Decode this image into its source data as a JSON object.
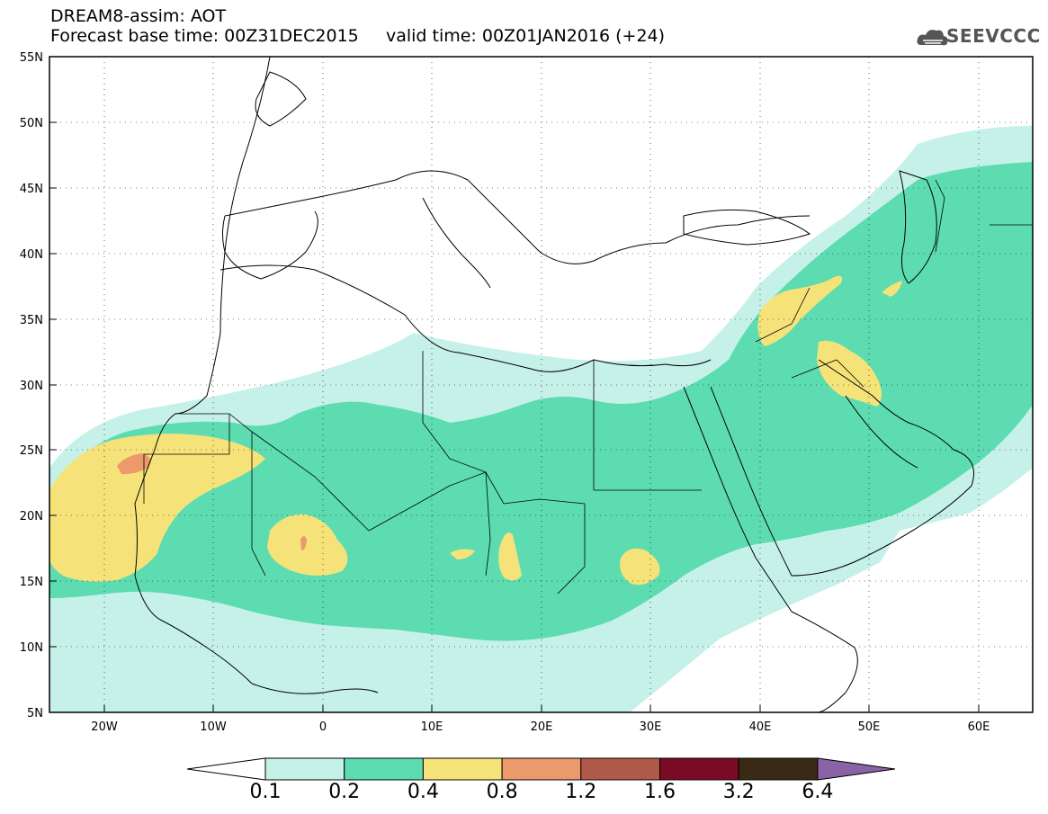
{
  "header": {
    "title": "DREAM8-assim: AOT",
    "subtitle": "Forecast base time: 00Z31DEC2015     valid time: 00Z01JAN2016 (+24)",
    "logo_text": "SEEVCCC"
  },
  "map": {
    "lon_range": [
      -25,
      65
    ],
    "lat_range": [
      5,
      55
    ],
    "lat_ticks": [
      "5N",
      "10N",
      "15N",
      "20N",
      "25N",
      "30N",
      "35N",
      "40N",
      "45N",
      "50N",
      "55N"
    ],
    "lon_ticks": [
      "20W",
      "10W",
      "0",
      "10E",
      "20E",
      "30E",
      "40E",
      "50E",
      "60E"
    ],
    "grid": "dotted"
  },
  "legend": {
    "levels": [
      "0.1",
      "0.2",
      "0.4",
      "0.8",
      "1.2",
      "1.6",
      "3.2",
      "6.4"
    ],
    "colors": [
      "#ffffff",
      "#c5f1e9",
      "#5cdcb0",
      "#f5e37a",
      "#ec9a6b",
      "#b15a4a",
      "#7a0a25",
      "#3a2a15",
      "#8a62a5"
    ]
  }
}
